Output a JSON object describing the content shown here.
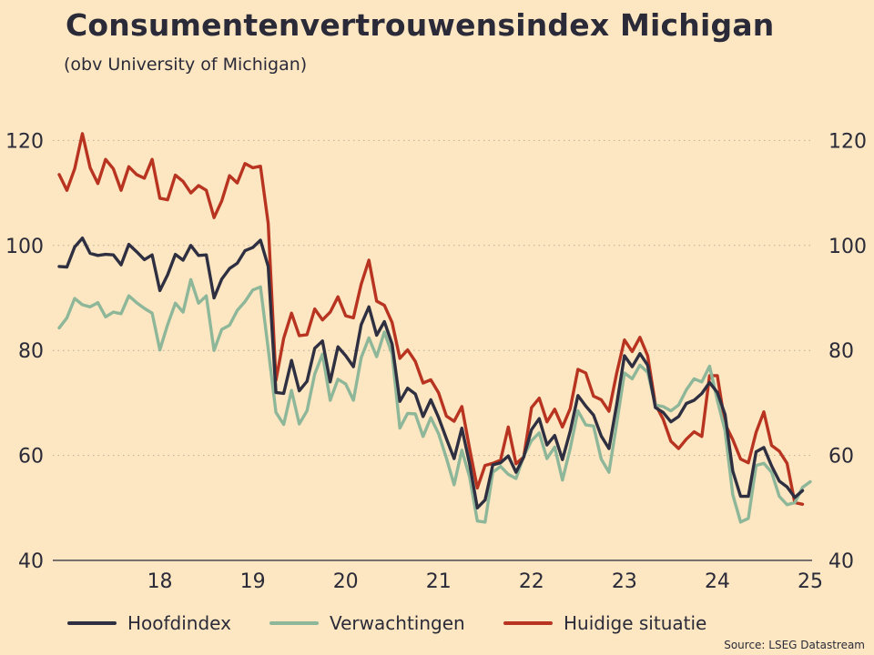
{
  "chart_data": {
    "type": "line",
    "title": "Consumentenvertrouwensindex Michigan",
    "subtitle": "(obv University of Michigan)",
    "source": "Source: LSEG Datastream",
    "x_tick_labels": [
      "18",
      "19",
      "20",
      "21",
      "22",
      "23",
      "24",
      "25"
    ],
    "x_range": [
      "2017-06",
      "2025-07"
    ],
    "ylim": [
      40,
      125
    ],
    "y_ticks": [
      40,
      60,
      80,
      100,
      120
    ],
    "y_tick_labels": [
      "40",
      "60",
      "80",
      "100",
      "120"
    ],
    "y_axis_sides": [
      "left",
      "right"
    ],
    "grid": "horizontal-dotted",
    "legend_position": "bottom",
    "x": [
      "2017-06",
      "2017-07",
      "2017-08",
      "2017-09",
      "2017-10",
      "2017-11",
      "2017-12",
      "2018-01",
      "2018-02",
      "2018-03",
      "2018-04",
      "2018-05",
      "2018-06",
      "2018-07",
      "2018-08",
      "2018-09",
      "2018-10",
      "2018-11",
      "2018-12",
      "2019-01",
      "2019-02",
      "2019-03",
      "2019-04",
      "2019-05",
      "2019-06",
      "2019-07",
      "2019-08",
      "2019-09",
      "2019-10",
      "2019-11",
      "2019-12",
      "2020-01",
      "2020-02",
      "2020-03",
      "2020-04",
      "2020-05",
      "2020-06",
      "2020-07",
      "2020-08",
      "2020-09",
      "2020-10",
      "2020-11",
      "2020-12",
      "2021-01",
      "2021-02",
      "2021-03",
      "2021-04",
      "2021-05",
      "2021-06",
      "2021-07",
      "2021-08",
      "2021-09",
      "2021-10",
      "2021-11",
      "2021-12",
      "2022-01",
      "2022-02",
      "2022-03",
      "2022-04",
      "2022-05",
      "2022-06",
      "2022-07",
      "2022-08",
      "2022-09",
      "2022-10",
      "2022-11",
      "2022-12",
      "2023-01",
      "2023-02",
      "2023-03",
      "2023-04",
      "2023-05",
      "2023-06",
      "2023-07",
      "2023-08",
      "2023-09",
      "2023-10",
      "2023-11",
      "2023-12",
      "2024-01",
      "2024-02",
      "2024-03",
      "2024-04",
      "2024-05",
      "2024-06",
      "2024-07",
      "2024-08",
      "2024-09",
      "2024-10",
      "2024-11",
      "2024-12",
      "2025-01",
      "2025-02",
      "2025-03",
      "2025-04",
      "2025-05",
      "2025-06",
      "2025-07"
    ],
    "series": [
      {
        "name": "Hoofdindex",
        "color": "#2f2f42",
        "values": [
          96,
          95.9,
          99.7,
          101.4,
          98.5,
          98.1,
          98.3,
          98.2,
          96.3,
          100.2,
          98.8,
          97.3,
          98.2,
          91.4,
          94.4,
          98.3,
          97.2,
          100,
          98.1,
          98.2,
          90,
          93.6,
          95.6,
          96.6,
          99,
          99.6,
          101,
          96,
          72,
          71.8,
          78.1,
          72.3,
          74.1,
          80.4,
          81.8,
          74,
          80.7,
          79,
          76.9,
          84.9,
          88.3,
          82.9,
          85.5,
          81.2,
          70.3,
          72.8,
          71.7,
          67.4,
          70.6,
          67.2,
          63.2,
          59.4,
          65.2,
          58.4,
          50,
          51.5,
          58.2,
          58.6,
          59.9,
          56.8,
          59.7,
          64.9,
          67,
          62,
          63.8,
          59.2,
          64.6,
          71.4,
          69.4,
          67.7,
          63.7,
          61.3,
          69.7,
          79,
          76.9,
          79.4,
          77.2,
          69.1,
          68.2,
          66.4,
          67.4,
          69.9,
          70.5,
          71.8,
          73.9,
          72,
          67.8,
          57,
          52.2,
          52.2,
          60.7,
          61.5,
          58,
          55.1,
          54,
          52,
          53.3,
          null
        ],
        "label_index": 0
      },
      {
        "name": "Verwachtingen",
        "color": "#8eb79a",
        "values": [
          84.3,
          86.2,
          89.9,
          88.7,
          88.3,
          89.1,
          86.4,
          87.3,
          87,
          90.4,
          89.1,
          88,
          87.1,
          80.1,
          84.9,
          89,
          87.3,
          93.5,
          89,
          90.4,
          80,
          84,
          84.8,
          87.6,
          89.3,
          91.5,
          92.1,
          80.3,
          68.2,
          65.9,
          72.4,
          66,
          68.5,
          75.5,
          79.3,
          70.5,
          74.5,
          73.6,
          70.5,
          78.6,
          82.4,
          78.8,
          83.5,
          79.3,
          65.2,
          68,
          67.9,
          63.6,
          67.2,
          64.1,
          59.5,
          54.4,
          61,
          55.9,
          47.5,
          47.3,
          56.8,
          57.9,
          56.4,
          55.6,
          59.9,
          62.8,
          64.3,
          59.4,
          61.6,
          55.3,
          61.3,
          68.5,
          65.8,
          65.6,
          59.3,
          56.8,
          66.1,
          75.7,
          74.6,
          77.2,
          75.8,
          69.6,
          69.3,
          68.5,
          69.6,
          72.5,
          74.6,
          74,
          77,
          70.5,
          64.7,
          52.5,
          47.3,
          48,
          58.1,
          58.5,
          56.8,
          52.2,
          50.6,
          51,
          53.9,
          55
        ],
        "label_index": 1
      },
      {
        "name": "Huidige situatie",
        "color": "#b83420",
        "values": [
          113.5,
          110.5,
          114.6,
          121.3,
          114.8,
          111.8,
          116.4,
          114.6,
          110.5,
          115,
          113.5,
          112.8,
          116.4,
          109,
          108.7,
          113.4,
          112.2,
          110,
          111.4,
          110.5,
          105.3,
          108.5,
          113.3,
          111.9,
          115.6,
          114.8,
          115.1,
          104.2,
          74.3,
          82.3,
          87.1,
          82.8,
          83,
          87.9,
          85.8,
          87.3,
          90.2,
          86.6,
          86.2,
          92.6,
          97.2,
          89.4,
          88.6,
          85.3,
          78.5,
          80.1,
          77.9,
          73.8,
          74.4,
          71.9,
          67.5,
          66.5,
          69.3,
          61.3,
          53.8,
          58.1,
          58.5,
          59.1,
          65.4,
          58.4,
          59.7,
          69.1,
          70.9,
          66.4,
          68.8,
          65.4,
          68.9,
          76.4,
          75.7,
          71.3,
          70.6,
          68.4,
          75.7,
          82,
          79.8,
          82.5,
          79,
          69.7,
          66.9,
          62.7,
          61.3,
          63.1,
          64.5,
          63.6,
          75.2,
          75.2,
          66,
          63,
          59.3,
          58.6,
          64.4,
          68.3,
          61.9,
          60.8,
          58.5,
          51,
          50.7,
          null
        ],
        "label_index": 2
      }
    ]
  }
}
